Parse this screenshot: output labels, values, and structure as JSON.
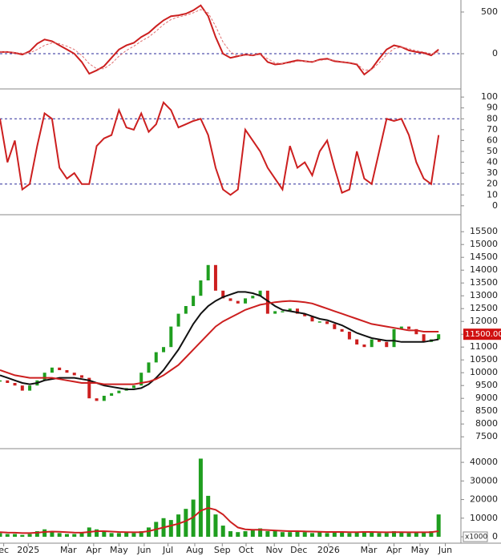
{
  "chart_data": [
    {
      "type": "line",
      "ylim": [
        -413,
        644
      ],
      "yticks": [
        0,
        500
      ],
      "hlines": [
        0
      ],
      "series": [
        {
          "color": "#cc1f1f",
          "values": [
            20,
            20,
            10,
            -10,
            30,
            120,
            170,
            150,
            100,
            50,
            0,
            -100,
            -240,
            -200,
            -150,
            -50,
            50,
            100,
            130,
            200,
            250,
            330,
            400,
            450,
            460,
            480,
            520,
            580,
            450,
            200,
            0,
            -50,
            -30,
            -10,
            -20,
            0,
            -100,
            -130,
            -120,
            -100,
            -80,
            -90,
            -100,
            -70,
            -60,
            -90,
            -100,
            -110,
            -130,
            -250,
            -180,
            -60,
            50,
            100,
            80,
            40,
            20,
            10,
            -20,
            50
          ]
        },
        {
          "color": "#e07070",
          "dashed": true,
          "values": [
            20,
            20,
            15,
            5,
            10,
            50,
            100,
            130,
            120,
            90,
            50,
            -20,
            -120,
            -180,
            -180,
            -120,
            -30,
            40,
            90,
            150,
            200,
            270,
            350,
            410,
            440,
            460,
            490,
            530,
            490,
            330,
            140,
            20,
            -30,
            -20,
            -15,
            -10,
            -60,
            -110,
            -120,
            -110,
            -90,
            -90,
            -95,
            -80,
            -70,
            -80,
            -95,
            -105,
            -120,
            -200,
            -190,
            -110,
            -10,
            60,
            80,
            60,
            35,
            20,
            0,
            20
          ]
        }
      ]
    },
    {
      "type": "line",
      "ylim": [
        -6,
        106
      ],
      "yticks": [
        0,
        10,
        20,
        30,
        40,
        50,
        60,
        70,
        80,
        90,
        100
      ],
      "hlines": [
        80,
        20
      ],
      "series": [
        {
          "color": "#cc1f1f",
          "values": [
            80,
            40,
            60,
            15,
            20,
            55,
            85,
            80,
            35,
            25,
            30,
            20,
            20,
            55,
            62,
            65,
            88,
            72,
            70,
            85,
            68,
            75,
            95,
            88,
            72,
            75,
            78,
            80,
            65,
            35,
            15,
            10,
            15,
            70,
            60,
            50,
            35,
            25,
            15,
            55,
            35,
            40,
            28,
            50,
            60,
            35,
            12,
            15,
            50,
            25,
            20,
            50,
            80,
            78,
            80,
            65,
            40,
            25,
            20,
            65
          ]
        }
      ]
    },
    {
      "type": "price",
      "ylim": [
        7100,
        16100
      ],
      "yticks": [
        7500,
        8000,
        8500,
        9000,
        9500,
        10000,
        10500,
        11000,
        11500,
        12000,
        12500,
        13000,
        13500,
        14000,
        14500,
        15000,
        15500
      ],
      "last_price": {
        "value": 11500,
        "label": "11500.00"
      },
      "close": {
        "up_color": "#1f9e1f",
        "down_color": "#cc1f1f",
        "values": [
          9700,
          9600,
          9500,
          9300,
          9500,
          9700,
          10000,
          10200,
          10100,
          10000,
          9900,
          9800,
          9000,
          8900,
          9100,
          9200,
          9300,
          9400,
          9500,
          10000,
          10400,
          10800,
          11000,
          11800,
          12300,
          12600,
          13000,
          13600,
          14200,
          13200,
          12900,
          12800,
          12700,
          12900,
          13000,
          13200,
          12300,
          12400,
          12400,
          12500,
          12300,
          12200,
          12000,
          12000,
          11900,
          11700,
          11600,
          11300,
          11100,
          11000,
          11300,
          11200,
          11000,
          11700,
          11800,
          11700,
          11500,
          11200,
          11300,
          11500
        ]
      },
      "series": [
        {
          "color": "#111111",
          "values": [
            9900,
            9800,
            9700,
            9600,
            9550,
            9600,
            9700,
            9750,
            9800,
            9800,
            9800,
            9750,
            9700,
            9600,
            9500,
            9450,
            9400,
            9350,
            9350,
            9400,
            9550,
            9800,
            10100,
            10500,
            10900,
            11400,
            11900,
            12300,
            12600,
            12800,
            12950,
            13050,
            13150,
            13150,
            13100,
            13000,
            12800,
            12600,
            12450,
            12400,
            12350,
            12300,
            12200,
            12100,
            12050,
            11950,
            11850,
            11700,
            11550,
            11450,
            11350,
            11300,
            11250,
            11250,
            11200,
            11200,
            11200,
            11200,
            11250,
            11300
          ]
        },
        {
          "color": "#cc1f1f",
          "values": [
            10100,
            10000,
            9900,
            9850,
            9800,
            9800,
            9800,
            9800,
            9750,
            9700,
            9650,
            9600,
            9600,
            9600,
            9550,
            9550,
            9550,
            9550,
            9550,
            9600,
            9650,
            9750,
            9900,
            10100,
            10300,
            10600,
            10900,
            11200,
            11500,
            11800,
            12000,
            12150,
            12300,
            12450,
            12550,
            12650,
            12700,
            12750,
            12780,
            12800,
            12780,
            12750,
            12700,
            12600,
            12500,
            12400,
            12300,
            12200,
            12100,
            12000,
            11900,
            11850,
            11800,
            11750,
            11700,
            11650,
            11650,
            11600,
            11600,
            11600
          ]
        }
      ]
    },
    {
      "type": "bar",
      "ylim": [
        0,
        46500
      ],
      "yticks": [
        0,
        10000,
        20000,
        30000,
        40000
      ],
      "unit_label": "x1000",
      "xlim": [
        0,
        62
      ],
      "xticks": [
        {
          "value": 0.5,
          "label": "ec"
        },
        {
          "value": 3.8,
          "label": "2025"
        },
        {
          "value": 9.2,
          "label": "Mar"
        },
        {
          "value": 12.6,
          "label": "Apr"
        },
        {
          "value": 16,
          "label": "May"
        },
        {
          "value": 19.4,
          "label": "Jun"
        },
        {
          "value": 22.6,
          "label": "Jul"
        },
        {
          "value": 26.2,
          "label": "Aug"
        },
        {
          "value": 29.9,
          "label": "Sep"
        },
        {
          "value": 33.1,
          "label": "Oct"
        },
        {
          "value": 36.9,
          "label": "Nov"
        },
        {
          "value": 40.2,
          "label": "Dec"
        },
        {
          "value": 44.2,
          "label": "2026"
        },
        {
          "value": 49.6,
          "label": "Mar"
        },
        {
          "value": 53,
          "label": "Apr"
        },
        {
          "value": 56.5,
          "label": "May"
        },
        {
          "value": 59.9,
          "label": "Jun"
        }
      ],
      "bars": {
        "color": "#1f9e1f",
        "values": [
          2000,
          1500,
          1500,
          1000,
          1500,
          3000,
          4000,
          3000,
          2000,
          1500,
          1500,
          2000,
          5000,
          4000,
          3000,
          2000,
          2000,
          2500,
          2000,
          3000,
          5000,
          8000,
          10000,
          9000,
          12000,
          15000,
          20000,
          42000,
          22000,
          12000,
          6000,
          3000,
          2500,
          3000,
          4000,
          4500,
          3000,
          3000,
          2500,
          2500,
          3000,
          2500,
          2000,
          2500,
          2000,
          3000,
          2500,
          2000,
          2500,
          3000,
          2500,
          2000,
          2000,
          3000,
          2500,
          2000,
          2500,
          2500,
          3000,
          12000
        ]
      },
      "series": [
        {
          "color": "#cc1f1f",
          "values": [
            2500,
            2300,
            2200,
            2000,
            2000,
            2200,
            2600,
            2800,
            2700,
            2500,
            2300,
            2200,
            2600,
            3000,
            3000,
            2800,
            2600,
            2500,
            2400,
            2500,
            3000,
            4000,
            5000,
            6000,
            7000,
            8500,
            10500,
            14000,
            15500,
            14500,
            12000,
            8000,
            5000,
            4000,
            3800,
            3800,
            3600,
            3400,
            3200,
            3000,
            3000,
            2900,
            2800,
            2700,
            2600,
            2600,
            2600,
            2500,
            2500,
            2600,
            2600,
            2500,
            2400,
            2500,
            2500,
            2400,
            2400,
            2400,
            2500,
            3000
          ]
        }
      ]
    }
  ]
}
